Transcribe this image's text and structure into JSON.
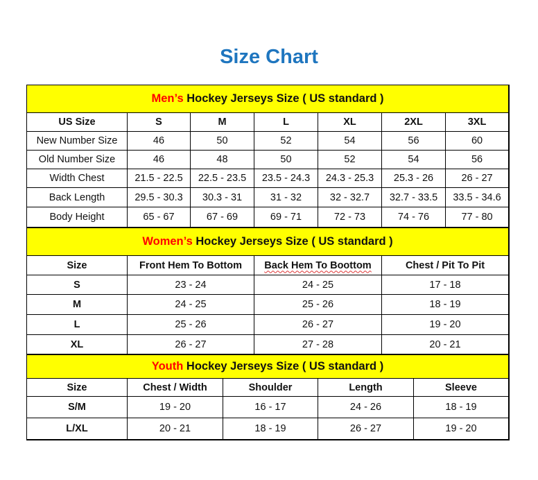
{
  "title": "Size Chart",
  "colors": {
    "title": "#1f76bf",
    "section_bg": "#ffff00",
    "highlight": "#ff0000"
  },
  "mens": {
    "heading_highlight": "Men’s",
    "heading_rest": " Hockey Jerseys Size ( US standard )",
    "columns": [
      "US Size",
      "S",
      "M",
      "L",
      "XL",
      "2XL",
      "3XL"
    ],
    "rows": [
      [
        "New Number Size",
        "46",
        "50",
        "52",
        "54",
        "56",
        "60"
      ],
      [
        "Old Number Size",
        "46",
        "48",
        "50",
        "52",
        "54",
        "56"
      ],
      [
        "Width Chest",
        "21.5 - 22.5",
        "22.5 - 23.5",
        "23.5 - 24.3",
        "24.3 - 25.3",
        "25.3 - 26",
        "26 - 27"
      ],
      [
        "Back Length",
        "29.5 - 30.3",
        "30.3 - 31",
        "31 - 32",
        "32 - 32.7",
        "32.7 - 33.5",
        "33.5 - 34.6"
      ],
      [
        "Body Height",
        "65 - 67",
        "67 - 69",
        "69 - 71",
        "72 - 73",
        "74 - 76",
        "77 - 80"
      ]
    ]
  },
  "womens": {
    "heading_highlight": "Women’s",
    "heading_rest": " Hockey Jerseys Size ( US standard )",
    "columns": [
      "Size",
      "Front Hem To Bottom",
      "Back Hem To Boottom",
      "Chest / Pit To Pit"
    ],
    "rows": [
      [
        "S",
        "23 - 24",
        "24 - 25",
        "17 - 18"
      ],
      [
        "M",
        "24 - 25",
        "25 - 26",
        "18 - 19"
      ],
      [
        "L",
        "25 - 26",
        "26 - 27",
        "19 - 20"
      ],
      [
        "XL",
        "26 - 27",
        "27 - 28",
        "20 - 21"
      ]
    ]
  },
  "youth": {
    "heading_highlight": "Youth",
    "heading_rest": " Hockey Jerseys Size ( US standard )",
    "columns": [
      "Size",
      "Chest / Width",
      "Shoulder",
      "Length",
      "Sleeve"
    ],
    "rows": [
      [
        "S/M",
        "19 - 20",
        "16 - 17",
        "24 - 26",
        "18 - 19"
      ],
      [
        "L/XL",
        "20 - 21",
        "18 - 19",
        "26 - 27",
        "19 - 20"
      ]
    ]
  }
}
